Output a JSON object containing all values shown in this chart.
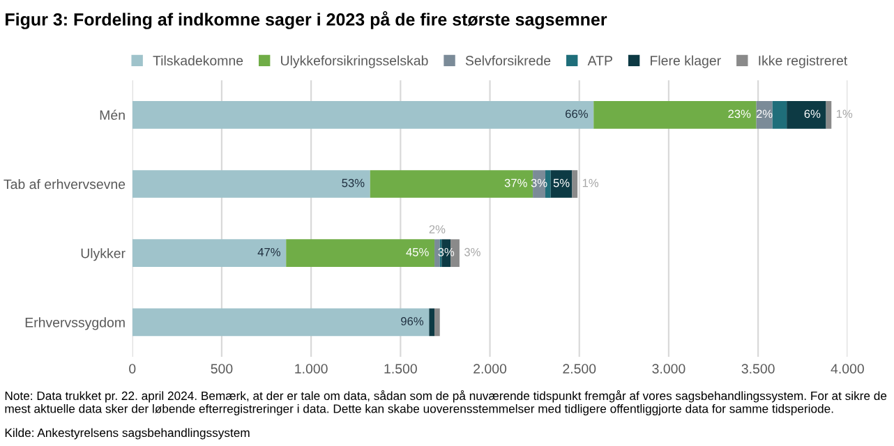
{
  "chart_data": {
    "type": "bar",
    "orientation": "horizontal",
    "stacked": true,
    "title": "Figur 3: Fordeling af indkomne sager i 2023 på de fire største sagsemner",
    "categories": [
      "Mén",
      "Tab af erhvervsevne",
      "Ulykker",
      "Erhvervssygdom"
    ],
    "series": [
      {
        "name": "Tilskadekomne",
        "color": "#9fc3cb",
        "values": [
          2580,
          1330,
          860,
          1660
        ]
      },
      {
        "name": "Ulykkeforsikringsselskab",
        "color": "#70ad47",
        "values": [
          910,
          910,
          830,
          0
        ]
      },
      {
        "name": "Selvforsikrede",
        "color": "#7b8b98",
        "values": [
          90,
          70,
          30,
          0
        ]
      },
      {
        "name": "ATP",
        "color": "#1f6e7a",
        "values": [
          80,
          30,
          10,
          0
        ]
      },
      {
        "name": "Flere klager",
        "color": "#0d3a44",
        "values": [
          220,
          120,
          50,
          30
        ]
      },
      {
        "name": "Ikke registreret",
        "color": "#8a8a8a",
        "values": [
          30,
          30,
          50,
          30
        ]
      }
    ],
    "xlim": [
      0,
      4000
    ],
    "xticks": [
      {
        "value": 0,
        "label": "0"
      },
      {
        "value": 500,
        "label": "500"
      },
      {
        "value": 1000,
        "label": "1.000"
      },
      {
        "value": 1500,
        "label": "1.500"
      },
      {
        "value": 2000,
        "label": "2.000"
      },
      {
        "value": 2500,
        "label": "2.500"
      },
      {
        "value": 3000,
        "label": "3.000"
      },
      {
        "value": 3500,
        "label": "3.500"
      },
      {
        "value": 4000,
        "label": "4.000"
      }
    ],
    "grid": "x",
    "legend": "top",
    "annotations": [
      {
        "text": "66%",
        "x": 2580,
        "y": "Mén"
      },
      {
        "text": "23%",
        "x": 3490,
        "y": "Mén"
      },
      {
        "text": "2%",
        "x": 3580,
        "y": "Mén"
      },
      {
        "text": "6%",
        "x": 3880,
        "y": "Mén"
      },
      {
        "text": "1%",
        "x": 3910,
        "y": "Mén"
      },
      {
        "text": "53%",
        "x": 1330,
        "y": "Tab af erhvervsevne"
      },
      {
        "text": "37%",
        "x": 2240,
        "y": "Tab af erhvervsevne"
      },
      {
        "text": "3%",
        "x": 2310,
        "y": "Tab af erhvervsevne"
      },
      {
        "text": "5%",
        "x": 2460,
        "y": "Tab af erhvervsevne"
      },
      {
        "text": "1%",
        "x": 2490,
        "y": "Tab af erhvervsevne"
      },
      {
        "text": "47%",
        "x": 860,
        "y": "Ulykker"
      },
      {
        "text": "45%",
        "x": 1690,
        "y": "Ulykker"
      },
      {
        "text": "2%",
        "x": 1720,
        "y": "Ulykker"
      },
      {
        "text": "3%",
        "x": 1780,
        "y": "Ulykker"
      },
      {
        "text": "3%",
        "x": 1830,
        "y": "Ulykker"
      },
      {
        "text": "96%",
        "x": 1660,
        "y": "Erhvervssygdom"
      },
      "Note: Data trukket pr. 22. april 2024. Bemærk, at der er tale om data, sådan som de på nuværende tidspunkt fremgår af vores sagsbehandlingssystem. For at sikre de mest aktuelle data sker der løbende efterregistreringer i data. Dette kan skabe uoverensstemmelser med tidligere offentliggjorte data for samme tidsperiode.",
      "Kilde: Ankestyrelsens sagsbehandlingssystem"
    ]
  }
}
